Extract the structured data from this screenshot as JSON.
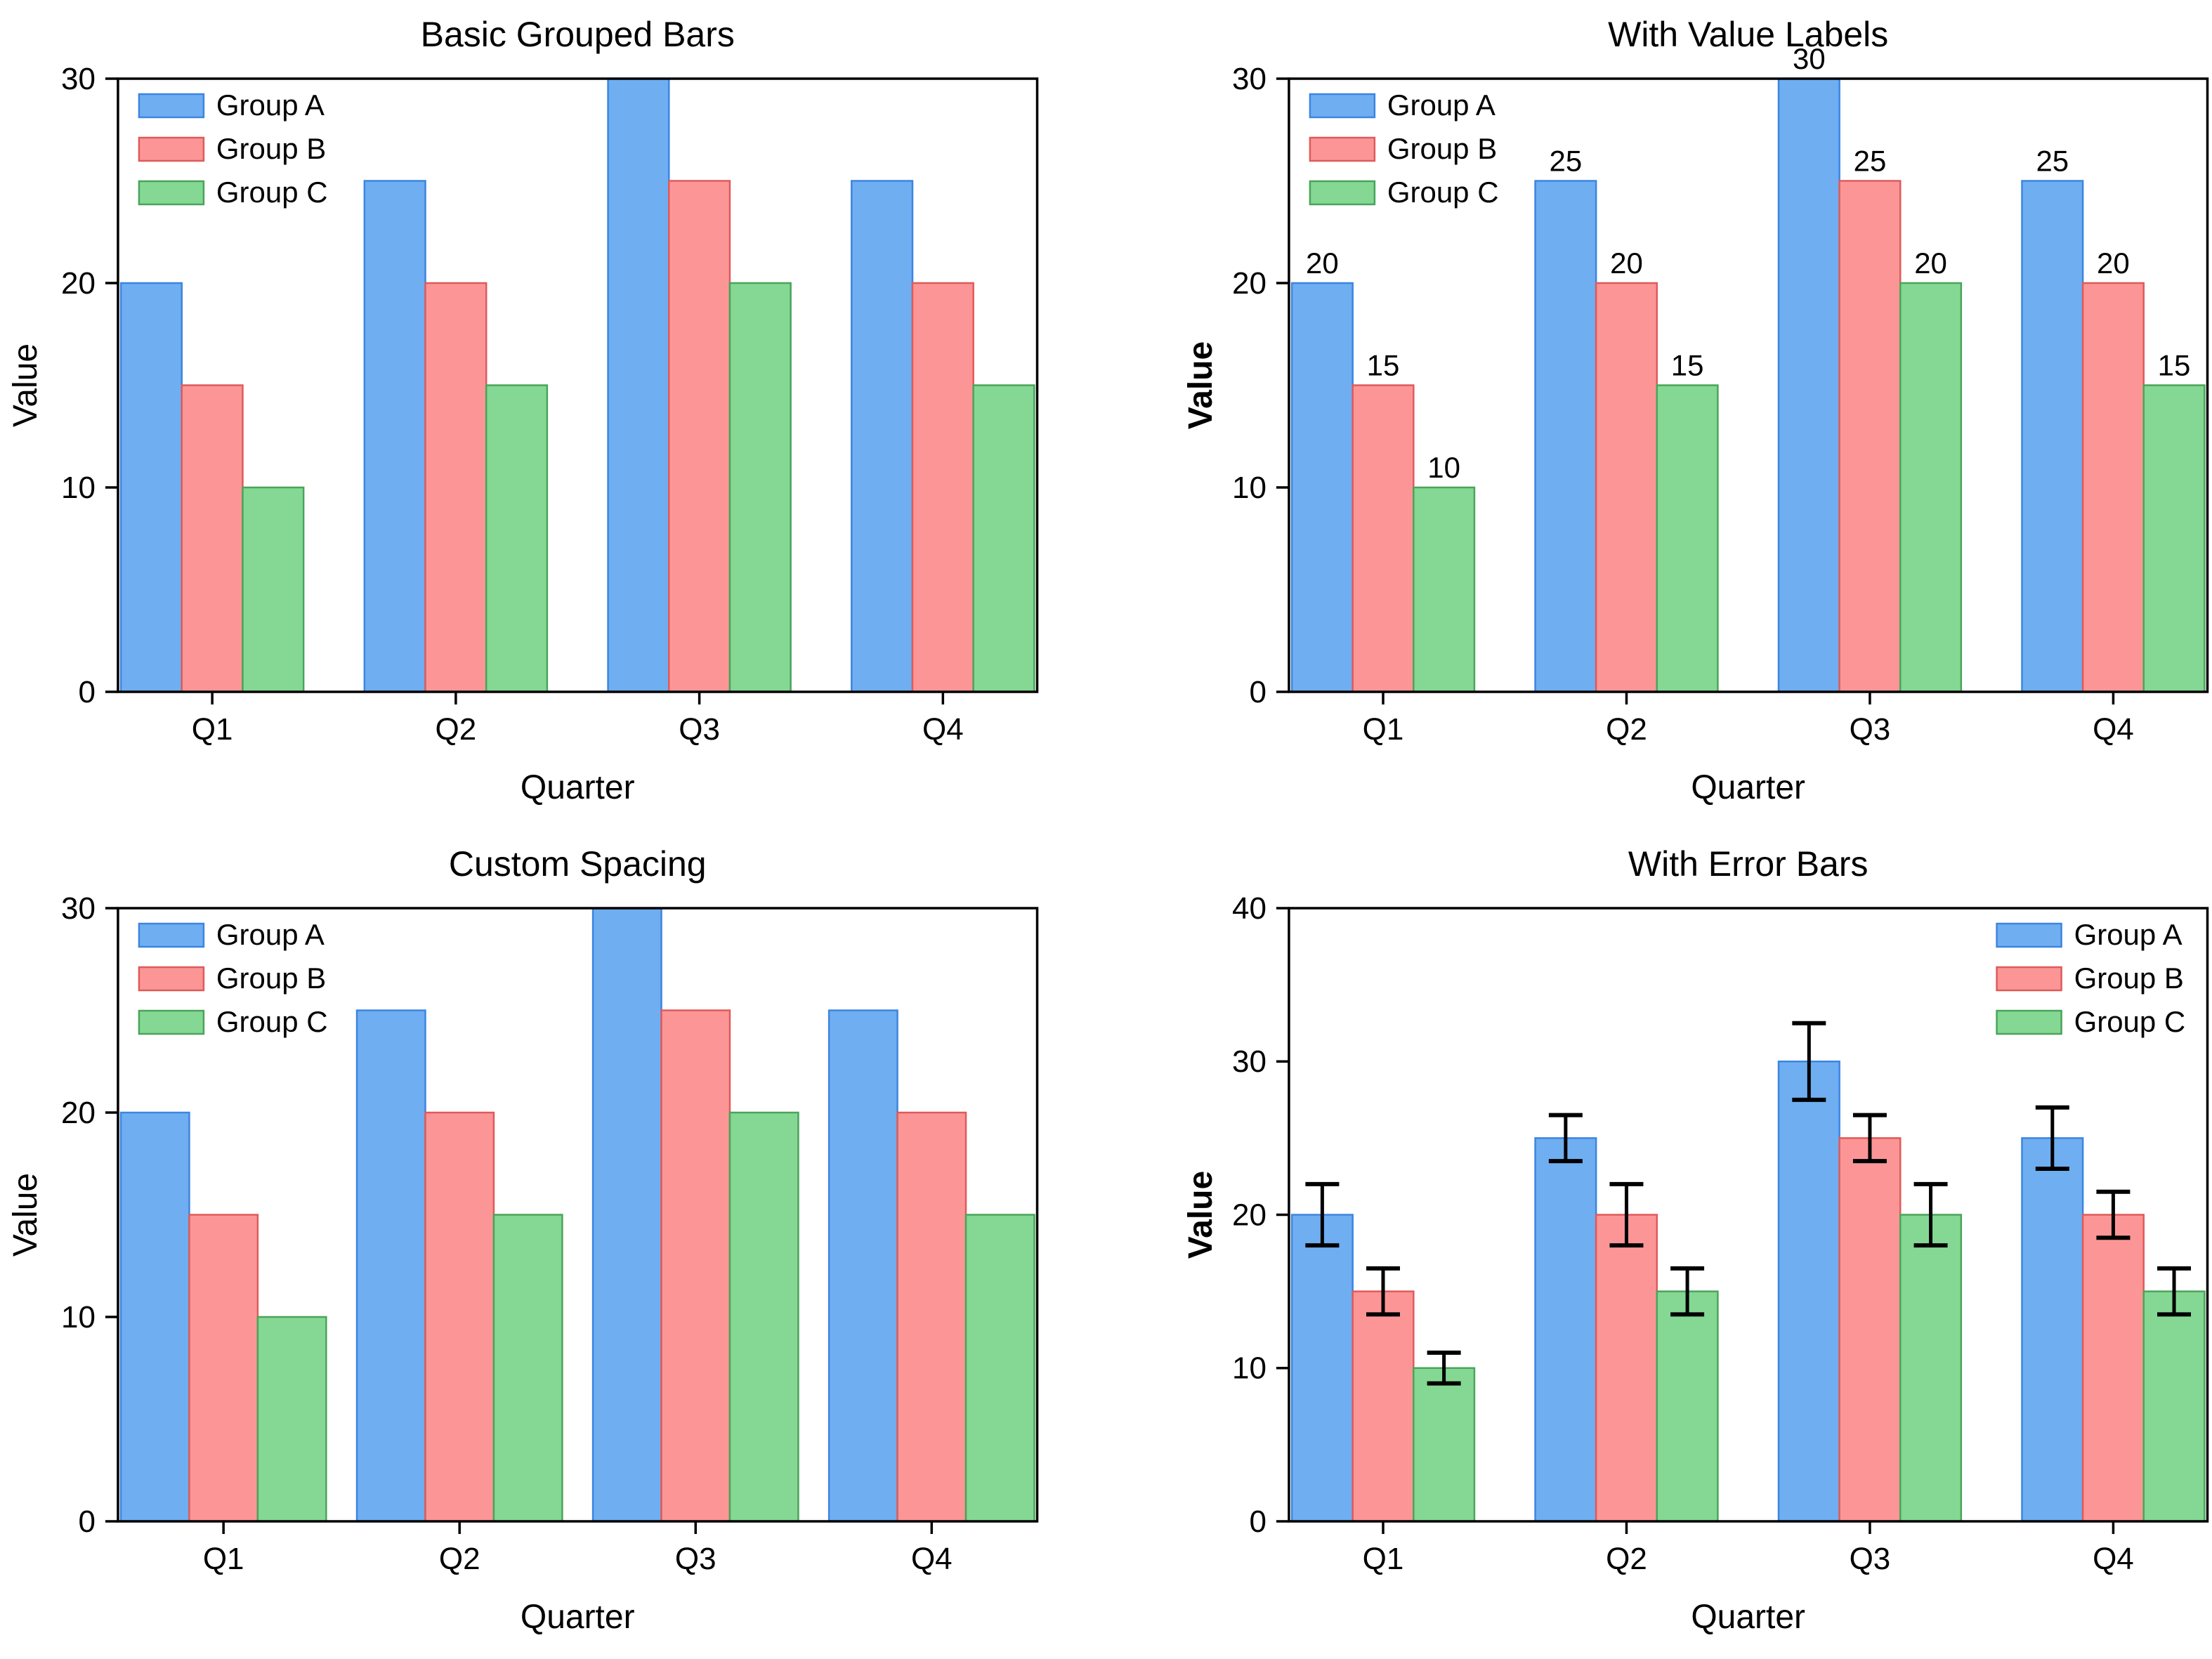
{
  "figure": {
    "background": "#ffffff",
    "rows": 2,
    "columns": 2
  },
  "palette": {
    "group_a_fill": "#6FAEF1",
    "group_a_edge": "#3D85E0",
    "group_b_fill": "#FC9696",
    "group_b_edge": "#E05A5A",
    "group_c_fill": "#84D893",
    "group_c_edge": "#4AA45A",
    "error_bar_color": "#000000",
    "axis_color": "#000000",
    "text_color": "#000000"
  },
  "chart_data": [
    {
      "id": "basic_grouped_bars",
      "type": "bar",
      "title": "Basic Grouped Bars",
      "xlabel": "Quarter",
      "ylabel": "Value",
      "categories": [
        "Q1",
        "Q2",
        "Q3",
        "Q4"
      ],
      "ylim": [
        0,
        30
      ],
      "yticks": [
        0,
        10,
        20,
        30
      ],
      "grid": false,
      "legend_position": "upper-left",
      "value_labels": false,
      "ylabel_bold": false,
      "bar_width_frac": 0.25,
      "series": [
        {
          "name": "Group A",
          "color": "#6FAEF1",
          "edge_color": "#3D85E0",
          "values": [
            20,
            25,
            30,
            25
          ]
        },
        {
          "name": "Group B",
          "color": "#FC9696",
          "edge_color": "#E05A5A",
          "values": [
            15,
            20,
            25,
            20
          ]
        },
        {
          "name": "Group C",
          "color": "#84D893",
          "edge_color": "#4AA45A",
          "values": [
            10,
            15,
            20,
            15
          ]
        }
      ]
    },
    {
      "id": "with_value_labels",
      "type": "bar",
      "title": "With Value Labels",
      "xlabel": "Quarter",
      "ylabel": "Value",
      "categories": [
        "Q1",
        "Q2",
        "Q3",
        "Q4"
      ],
      "ylim": [
        0,
        30
      ],
      "yticks": [
        0,
        10,
        20,
        30
      ],
      "grid": false,
      "legend_position": "upper-left",
      "value_labels": true,
      "ylabel_bold": true,
      "bar_width_frac": 0.25,
      "series": [
        {
          "name": "Group A",
          "color": "#6FAEF1",
          "edge_color": "#3D85E0",
          "values": [
            20,
            25,
            30,
            25
          ]
        },
        {
          "name": "Group B",
          "color": "#FC9696",
          "edge_color": "#E05A5A",
          "values": [
            15,
            20,
            25,
            20
          ]
        },
        {
          "name": "Group C",
          "color": "#84D893",
          "edge_color": "#4AA45A",
          "values": [
            10,
            15,
            20,
            15
          ]
        }
      ]
    },
    {
      "id": "custom_spacing",
      "type": "bar",
      "title": "Custom Spacing",
      "xlabel": "Quarter",
      "ylabel": "Value",
      "categories": [
        "Q1",
        "Q2",
        "Q3",
        "Q4"
      ],
      "ylim": [
        0,
        30
      ],
      "yticks": [
        0,
        10,
        20,
        30
      ],
      "grid": false,
      "legend_position": "upper-left",
      "value_labels": false,
      "ylabel_bold": false,
      "bar_width_frac": 0.29,
      "series": [
        {
          "name": "Group A",
          "color": "#6FAEF1",
          "edge_color": "#3D85E0",
          "values": [
            20,
            25,
            30,
            25
          ]
        },
        {
          "name": "Group B",
          "color": "#FC9696",
          "edge_color": "#E05A5A",
          "values": [
            15,
            20,
            25,
            20
          ]
        },
        {
          "name": "Group C",
          "color": "#84D893",
          "edge_color": "#4AA45A",
          "values": [
            10,
            15,
            20,
            15
          ]
        }
      ]
    },
    {
      "id": "with_error_bars",
      "type": "bar",
      "title": "With Error Bars",
      "xlabel": "Quarter",
      "ylabel": "Value",
      "categories": [
        "Q1",
        "Q2",
        "Q3",
        "Q4"
      ],
      "ylim": [
        0,
        40
      ],
      "yticks": [
        0,
        10,
        20,
        30,
        40
      ],
      "grid": false,
      "legend_position": "upper-right",
      "value_labels": false,
      "ylabel_bold": true,
      "bar_width_frac": 0.25,
      "series": [
        {
          "name": "Group A",
          "color": "#6FAEF1",
          "edge_color": "#3D85E0",
          "values": [
            20,
            25,
            30,
            25
          ],
          "errors": [
            2,
            1.5,
            2.5,
            2
          ]
        },
        {
          "name": "Group B",
          "color": "#FC9696",
          "edge_color": "#E05A5A",
          "values": [
            15,
            20,
            25,
            20
          ],
          "errors": [
            1.5,
            2,
            1.5,
            1.5
          ]
        },
        {
          "name": "Group C",
          "color": "#84D893",
          "edge_color": "#4AA45A",
          "values": [
            10,
            15,
            20,
            15
          ],
          "errors": [
            1,
            1.5,
            2,
            1.5
          ]
        }
      ]
    }
  ]
}
